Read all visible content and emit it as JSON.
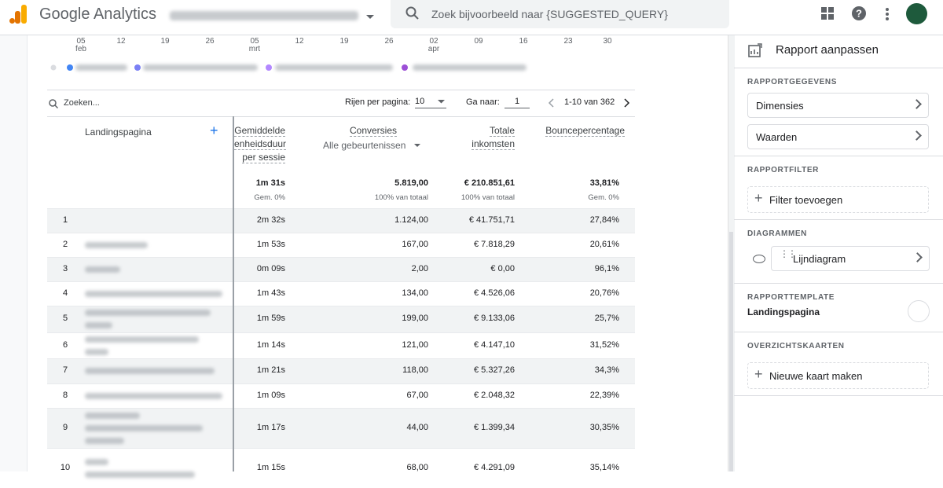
{
  "header": {
    "brand": "Google Analytics",
    "search_placeholder": "Zoek bijvoorbeeld naar {SUGGESTED_QUERY}"
  },
  "chart_axis": {
    "days": [
      "05",
      "12",
      "19",
      "26",
      "05",
      "12",
      "19",
      "26",
      "02",
      "09",
      "16",
      "23",
      "30"
    ],
    "months": [
      "feb",
      null,
      null,
      null,
      "mrt",
      null,
      null,
      null,
      "apr",
      null,
      null,
      null,
      null
    ]
  },
  "table": {
    "search": "Zoeken...",
    "rows_per_page_label": "Rijen per pagina:",
    "rows_per_page": "10",
    "goto_label": "Ga naar:",
    "goto": "1",
    "range": "1-10 van 362",
    "columns": {
      "landing": "Landingspagina",
      "duration": [
        "Gemiddelde",
        "enheidsduur",
        "per sessie"
      ],
      "conversions": "Conversies",
      "conversions_filter": "Alle gebeurtenissen",
      "revenue": [
        "Totale",
        "inkomsten"
      ],
      "bounce": "Bouncepercentage"
    },
    "totals": [
      [
        "1m 31s",
        "Gem. 0%"
      ],
      [
        "5.819,00",
        "100% van totaal"
      ],
      [
        "€ 210.851,61",
        "100% van totaal"
      ],
      [
        "33,81%",
        "Gem. 0%"
      ]
    ],
    "rows": [
      [
        "1",
        "2m 32s",
        "1.124,00",
        "€ 41.751,71",
        "27,84%"
      ],
      [
        "2",
        "1m 53s",
        "167,00",
        "€ 7.818,29",
        "20,61%"
      ],
      [
        "3",
        "0m 09s",
        "2,00",
        "€ 0,00",
        "96,1%"
      ],
      [
        "4",
        "1m 43s",
        "134,00",
        "€ 4.526,06",
        "20,76%"
      ],
      [
        "5",
        "1m 59s",
        "199,00",
        "€ 9.133,06",
        "25,7%"
      ],
      [
        "6",
        "1m 14s",
        "121,00",
        "€ 4.147,10",
        "31,52%"
      ],
      [
        "7",
        "1m 21s",
        "118,00",
        "€ 5.327,26",
        "34,3%"
      ],
      [
        "8",
        "1m 09s",
        "67,00",
        "€ 2.048,32",
        "22,39%"
      ],
      [
        "9",
        "1m 17s",
        "44,00",
        "€ 1.399,34",
        "30,35%"
      ],
      [
        "10",
        "1m 15s",
        "68,00",
        "€ 4.291,09",
        "35,14%"
      ]
    ]
  },
  "panel": {
    "title": "Rapport aanpassen",
    "sections": [
      {
        "heading": "RAPPORTGEGEVENS",
        "items": [
          "Dimensies",
          "Waarden"
        ]
      },
      {
        "heading": "RAPPORTFILTER",
        "items": [
          "Filter toevoegen"
        ]
      },
      {
        "heading": "DIAGRAMMEN",
        "items": [
          "Lijndiagram"
        ]
      },
      {
        "heading": "RAPPORTTEMPLATE",
        "items": [
          "Landingspagina"
        ]
      },
      {
        "heading": "OVERZICHTSKAARTEN",
        "items": [
          "Nieuwe kaart maken"
        ]
      }
    ]
  }
}
